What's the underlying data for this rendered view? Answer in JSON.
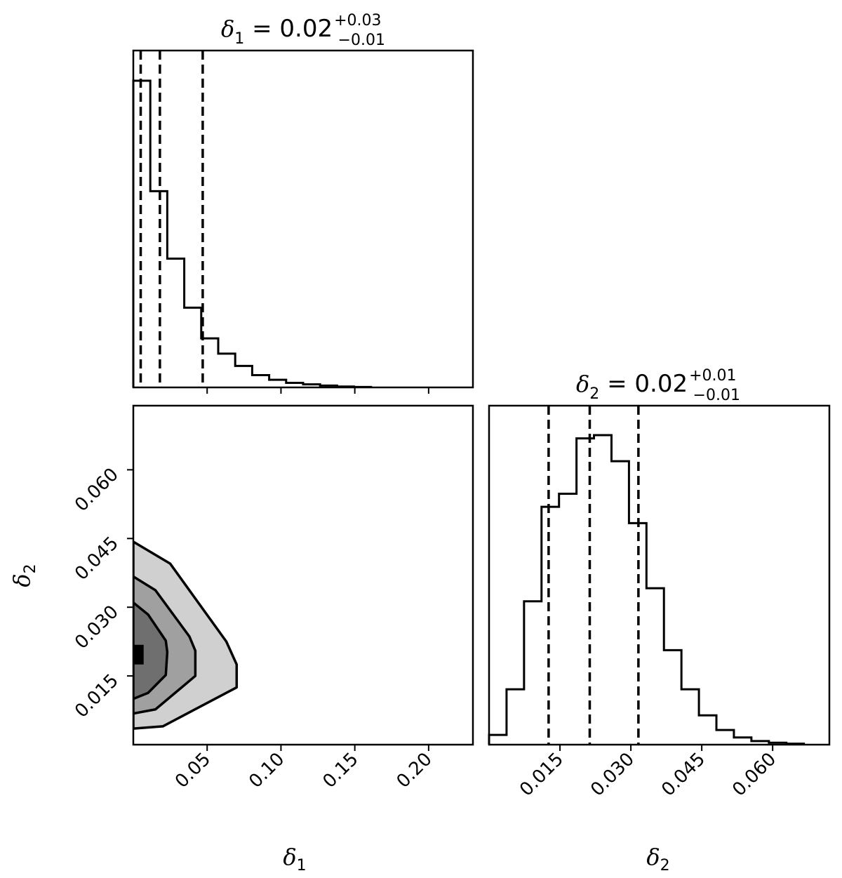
{
  "chart_data": [
    {
      "type": "histogram",
      "panel": "top-left",
      "title_param": "δ",
      "title_sub": "1",
      "title_value": " = 0.02",
      "title_plus": "+0.03",
      "title_minus": "−0.01",
      "xlim": [
        0.0,
        0.23
      ],
      "xticks": [
        0.05,
        0.1,
        0.15,
        0.2
      ],
      "bin_edges": [
        0.0,
        0.0115,
        0.023,
        0.0345,
        0.046,
        0.0575,
        0.069,
        0.0805,
        0.092,
        0.1035,
        0.115,
        0.1265,
        0.138,
        0.1495,
        0.161
      ],
      "counts": [
        100,
        64,
        42,
        26,
        16,
        11,
        7,
        4,
        2.5,
        1.5,
        1.0,
        0.6,
        0.3,
        0.15
      ],
      "quantiles": [
        0.005,
        0.018,
        0.047
      ]
    },
    {
      "type": "contour",
      "panel": "bottom-left",
      "xlabel_param": "δ",
      "xlabel_sub": "1",
      "ylabel_param": "δ",
      "ylabel_sub": "2",
      "xlim": [
        0.0,
        0.23
      ],
      "ylim": [
        0.0,
        0.074
      ],
      "xticks": [
        0.05,
        0.1,
        0.15,
        0.2
      ],
      "xtick_labels": [
        "0.05",
        "0.10",
        "0.15",
        "0.20"
      ],
      "yticks": [
        0.015,
        0.03,
        0.045,
        0.06
      ],
      "ytick_labels": [
        "0.015",
        "0.030",
        "0.045",
        "0.060"
      ],
      "levels": [
        {
          "fill": "#d0d0d0",
          "points": [
            [
              0.0,
              0.0443
            ],
            [
              0.025,
              0.0395
            ],
            [
              0.063,
              0.0225
            ],
            [
              0.07,
              0.0175
            ],
            [
              0.07,
              0.0125
            ],
            [
              0.02,
              0.004
            ],
            [
              0.0,
              0.0035
            ]
          ]
        },
        {
          "fill": "#a0a0a0",
          "points": [
            [
              0.0,
              0.0367
            ],
            [
              0.015,
              0.0337
            ],
            [
              0.038,
              0.0236
            ],
            [
              0.042,
              0.0205
            ],
            [
              0.042,
              0.015
            ],
            [
              0.015,
              0.0077
            ],
            [
              0.0,
              0.0068
            ]
          ]
        },
        {
          "fill": "#6f6f6f",
          "points": [
            [
              0.0,
              0.031
            ],
            [
              0.01,
              0.0284
            ],
            [
              0.022,
              0.0227
            ],
            [
              0.023,
              0.0202
            ],
            [
              0.022,
              0.0152
            ],
            [
              0.01,
              0.0113
            ],
            [
              0.0,
              0.01
            ]
          ]
        },
        {
          "fill": "#000000",
          "points": [
            [
              0.0,
              0.0218
            ],
            [
              0.007,
              0.0218
            ],
            [
              0.007,
              0.0175
            ],
            [
              0.0,
              0.0175
            ]
          ]
        }
      ]
    },
    {
      "type": "histogram",
      "panel": "bottom-right",
      "title_param": "δ",
      "title_sub": "2",
      "title_value": " = 0.02",
      "title_plus": "+0.01",
      "title_minus": "−0.01",
      "xlabel_param": "δ",
      "xlabel_sub": "2",
      "xlim": [
        0.0,
        0.072
      ],
      "xticks": [
        0.015,
        0.03,
        0.045,
        0.06
      ],
      "xtick_labels": [
        "0.015",
        "0.030",
        "0.045",
        "0.060"
      ],
      "bin_edges": [
        0.0,
        0.0037,
        0.0074,
        0.0111,
        0.0148,
        0.0185,
        0.0222,
        0.0259,
        0.0296,
        0.0333,
        0.037,
        0.0407,
        0.0444,
        0.0481,
        0.0518,
        0.0555,
        0.0592,
        0.0629,
        0.0666
      ],
      "counts": [
        3,
        17,
        44,
        73,
        77,
        94,
        95,
        87,
        68,
        48,
        29,
        17,
        9,
        4.5,
        2.2,
        1.1,
        0.6,
        0.3
      ],
      "quantiles": [
        0.0126,
        0.0213,
        0.0316
      ]
    }
  ]
}
